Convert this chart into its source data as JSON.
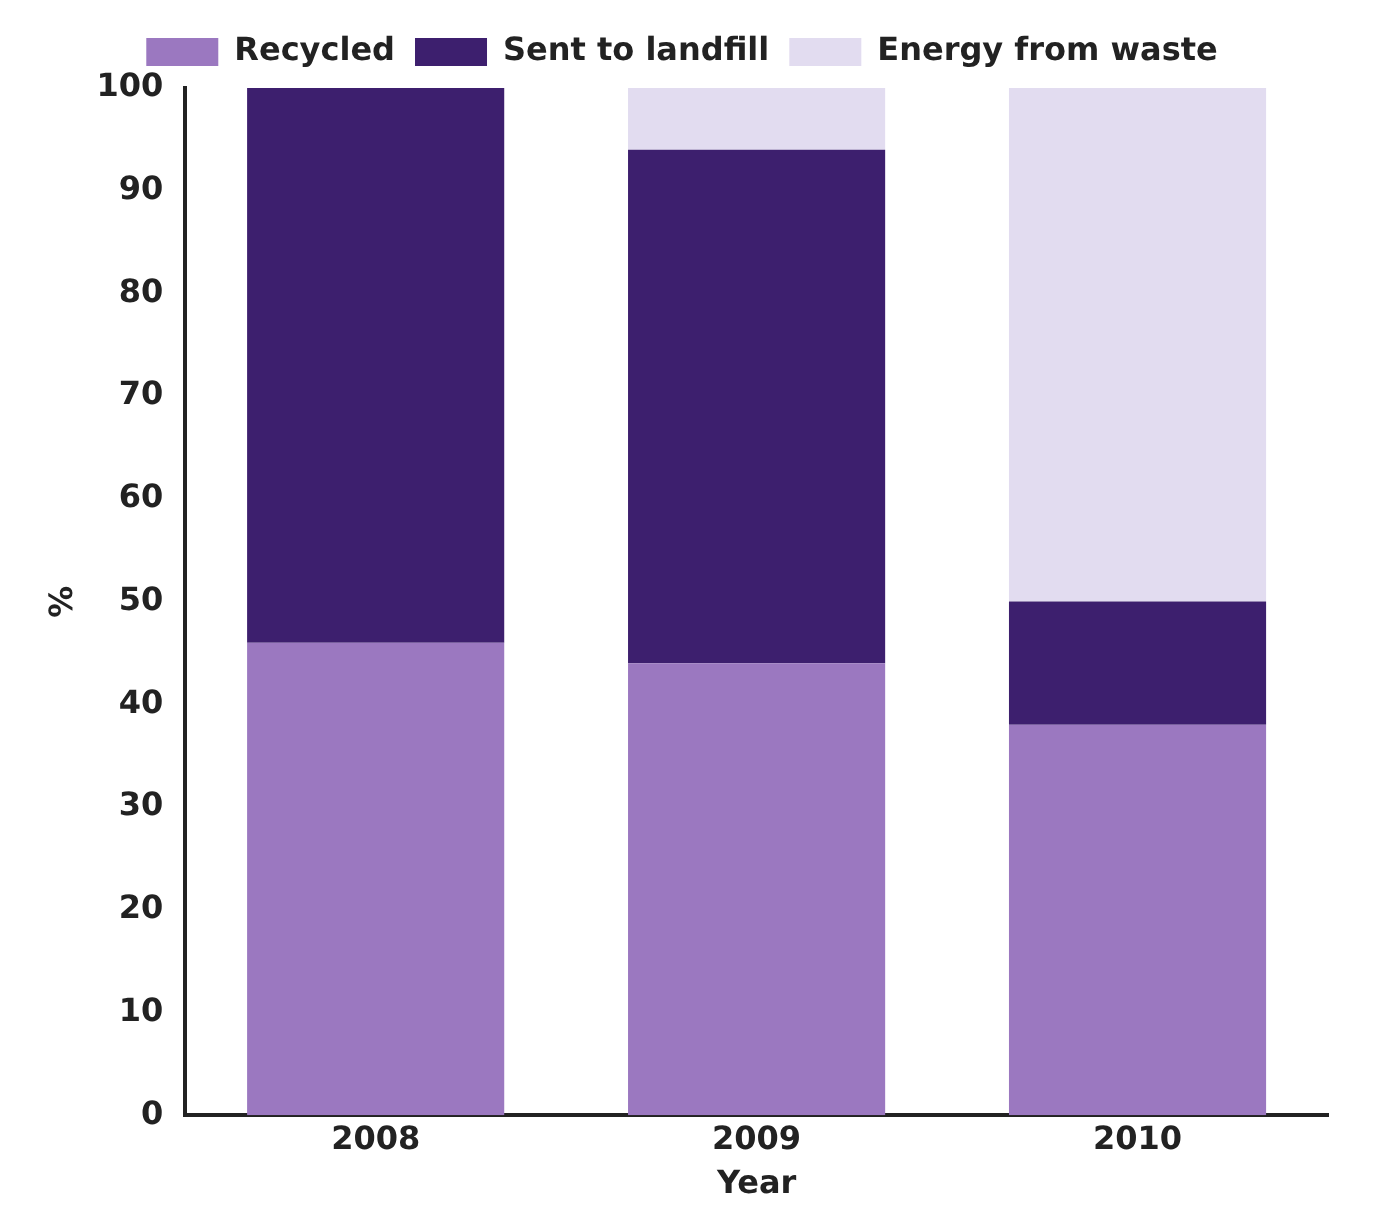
{
  "chart_data": {
    "type": "bar",
    "stacked": true,
    "categories": [
      "2008",
      "2009",
      "2010"
    ],
    "series": [
      {
        "name": "Recycled",
        "color": "#9b78c0",
        "values": [
          46,
          44,
          38
        ]
      },
      {
        "name": "Sent to landfill",
        "color": "#3d1f6e",
        "values": [
          54,
          50,
          12
        ]
      },
      {
        "name": "Energy from waste",
        "color": "#e2dcf0",
        "values": [
          0,
          6,
          50
        ]
      }
    ],
    "ylim": [
      0,
      100
    ],
    "yticks": [
      0,
      10,
      20,
      30,
      40,
      50,
      60,
      70,
      80,
      90,
      100
    ],
    "xlabel": "Year",
    "ylabel": "%",
    "grid": false,
    "legend": "top"
  }
}
